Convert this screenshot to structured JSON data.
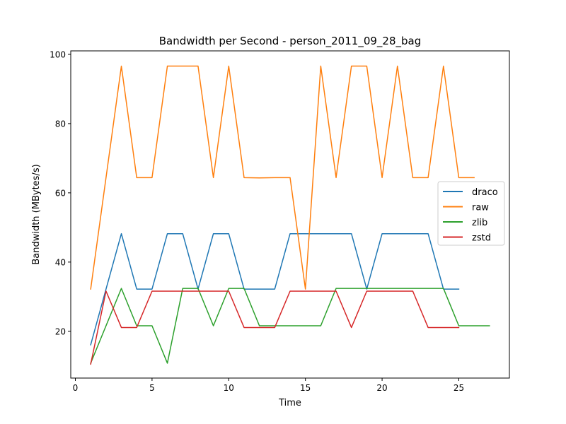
{
  "chart_data": {
    "type": "line",
    "title": "Bandwidth per Second - person_2011_09_28_bag",
    "xlabel": "Time",
    "ylabel": "Bandwidth (MBytes/s)",
    "xlim": [
      -0.3,
      28.3
    ],
    "ylim": [
      6.5,
      101
    ],
    "xticks": [
      0,
      5,
      10,
      15,
      20,
      25
    ],
    "yticks": [
      20,
      40,
      60,
      80,
      100
    ],
    "grid": false,
    "legend_position": "center-right",
    "series": [
      {
        "name": "draco",
        "color": "#1f77b4",
        "x": [
          1,
          2,
          3,
          4,
          5,
          6,
          7,
          8,
          9,
          10,
          11,
          12,
          13,
          14,
          15,
          16,
          17,
          18,
          19,
          20,
          21,
          22,
          23,
          24,
          25
        ],
        "y": [
          16.1,
          32.2,
          48.2,
          32.2,
          32.2,
          48.2,
          48.2,
          32.2,
          48.2,
          48.2,
          32.2,
          32.2,
          32.2,
          48.2,
          48.2,
          48.2,
          48.2,
          48.2,
          32.2,
          48.2,
          48.2,
          48.2,
          48.2,
          32.2,
          32.2
        ]
      },
      {
        "name": "raw",
        "color": "#ff7f0e",
        "x": [
          1,
          2,
          3,
          4,
          5,
          6,
          7,
          8,
          9,
          10,
          11,
          12,
          13,
          14,
          15,
          16,
          17,
          18,
          19,
          20,
          21,
          22,
          23,
          24,
          25,
          26
        ],
        "y": [
          32.2,
          64.4,
          96.6,
          64.4,
          64.4,
          96.6,
          96.6,
          96.6,
          64.4,
          96.6,
          64.4,
          64.3,
          64.4,
          64.4,
          32.2,
          96.6,
          64.4,
          96.6,
          96.6,
          64.4,
          96.6,
          64.4,
          64.4,
          96.6,
          64.4,
          64.4
        ]
      },
      {
        "name": "zlib",
        "color": "#2ca02c",
        "x": [
          1,
          2,
          3,
          4,
          5,
          6,
          7,
          8,
          9,
          10,
          11,
          12,
          13,
          14,
          15,
          16,
          17,
          18,
          19,
          20,
          21,
          22,
          23,
          24,
          25,
          26,
          27
        ],
        "y": [
          10.8,
          21.6,
          32.4,
          21.6,
          21.6,
          10.8,
          32.4,
          32.4,
          21.6,
          32.4,
          32.4,
          21.6,
          21.6,
          21.6,
          21.6,
          21.6,
          32.4,
          32.4,
          32.4,
          32.4,
          32.4,
          32.4,
          32.4,
          32.4,
          21.6,
          21.6,
          21.6
        ]
      },
      {
        "name": "zstd",
        "color": "#d62728",
        "x": [
          1,
          2,
          3,
          4,
          5,
          6,
          7,
          8,
          9,
          10,
          11,
          12,
          13,
          14,
          15,
          16,
          17,
          18,
          19,
          20,
          21,
          22,
          23,
          24,
          25
        ],
        "y": [
          10.5,
          31.6,
          21.1,
          21.1,
          31.6,
          31.6,
          31.6,
          31.6,
          31.6,
          31.6,
          21.1,
          21.1,
          21.1,
          31.6,
          31.6,
          31.6,
          31.6,
          21.1,
          31.6,
          31.6,
          31.6,
          31.6,
          21.1,
          21.1,
          21.1
        ]
      }
    ]
  }
}
